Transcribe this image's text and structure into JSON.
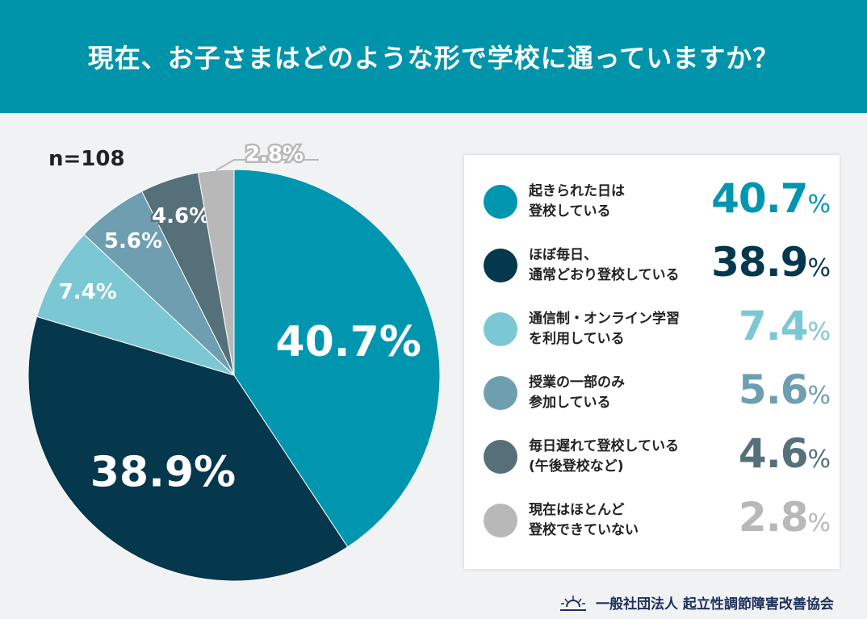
{
  "title": "現在、お子さまはどのような形で学校に通っていますか？",
  "sample": "n=108",
  "footer": "一般社団法人 起立性調節障害改善協会",
  "chart_data": {
    "type": "pie",
    "unit": "%",
    "slices": [
      {
        "label": "起きられた日は\n登校している",
        "value": 40.7,
        "color": "#0096b0"
      },
      {
        "label": "ほぼ毎日、\n通常どおり登校している",
        "value": 38.9,
        "color": "#05374d"
      },
      {
        "label": "通信制・オンライン学習\nを利用している",
        "value": 7.4,
        "color": "#7bc8d4"
      },
      {
        "label": "授業の一部のみ\n参加している",
        "value": 5.6,
        "color": "#6e9eb0"
      },
      {
        "label": "毎日遅れて登校している\n(午後登校など)",
        "value": 4.6,
        "color": "#56707a"
      },
      {
        "label": "現在はほとんど\n登校できていない",
        "value": 2.8,
        "color": "#b8b8b8"
      }
    ]
  }
}
